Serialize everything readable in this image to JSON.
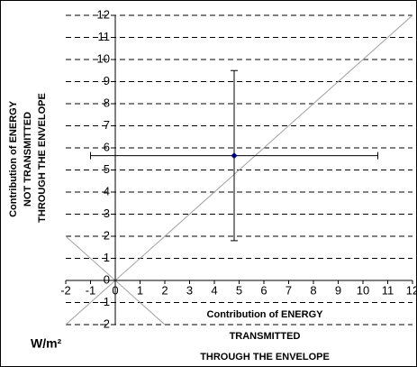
{
  "chart_data": {
    "type": "scatter",
    "y_title": [
      "Contribution of ENERGY",
      "NOT TRANSMITTED",
      "THROUGH THE ENVELOPE"
    ],
    "x_title": [
      "Contribution of ENERGY",
      "TRANSMITTED",
      "THROUGH THE ENVELOPE"
    ],
    "unit": "W/m²",
    "xlim": [
      -2,
      12
    ],
    "ylim": [
      -2,
      12
    ],
    "xticks": [
      -2,
      -1,
      0,
      1,
      2,
      3,
      4,
      5,
      6,
      7,
      8,
      9,
      10,
      11,
      12
    ],
    "yticks": [
      -2,
      -1,
      0,
      1,
      2,
      3,
      4,
      5,
      6,
      7,
      8,
      9,
      10,
      11,
      12
    ],
    "grid": true,
    "series": [
      {
        "color": "#000080",
        "x": [
          4.8
        ],
        "values": [
          5.65
        ],
        "xerr": [
          5.8
        ],
        "yerr": [
          3.85
        ]
      }
    ],
    "lines": [
      {
        "color": "#a0a0a0",
        "x": [
          -2,
          12
        ],
        "values": [
          -2,
          12
        ]
      },
      {
        "color": "#a0a0a0",
        "x": [
          -2,
          2
        ],
        "values": [
          2,
          -2
        ]
      }
    ]
  }
}
